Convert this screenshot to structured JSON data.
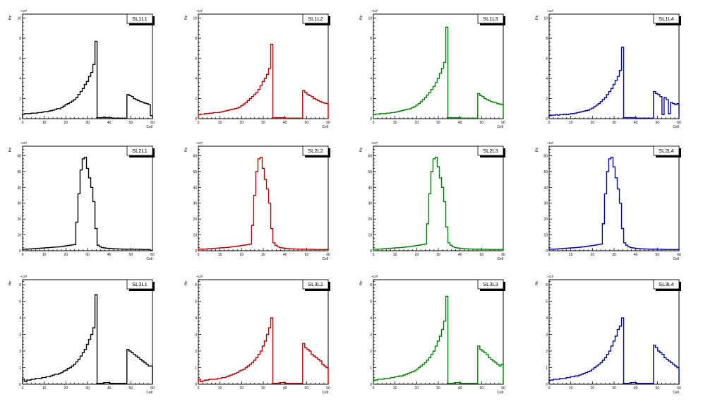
{
  "page": {
    "background": "#ffffff"
  },
  "chart_data": [
    {
      "type": "histogram",
      "legend": "SL1L1",
      "color": "#000000",
      "xlabel": "Cell",
      "ylabel": "Hz",
      "xlim": [
        0,
        60
      ],
      "ylim": [
        0,
        10.4
      ],
      "yexp": "×10²",
      "xticks": [
        0,
        10,
        20,
        30,
        40,
        50,
        60
      ],
      "yticks": [
        0,
        2,
        4,
        6,
        8,
        10
      ],
      "values": [
        0.45,
        0.5,
        0.5,
        0.5,
        0.55,
        0.55,
        0.55,
        0.6,
        0.6,
        0.65,
        0.7,
        0.7,
        0.75,
        0.8,
        0.85,
        0.9,
        1.0,
        1.0,
        1.1,
        1.25,
        1.4,
        1.5,
        1.6,
        1.75,
        1.9,
        2.1,
        2.4,
        2.7,
        3.0,
        3.4,
        3.7,
        4.2,
        4.6,
        5.4,
        7.7,
        0.1,
        0.1,
        0.1,
        0.15,
        0.1,
        0.1,
        0.1,
        0.05,
        0.05,
        0.05,
        0.05,
        0.05,
        0.05,
        0.05,
        2.4,
        2.3,
        2.2,
        2.0,
        1.9,
        1.8,
        1.7,
        1.65,
        1.55,
        1.5,
        1.4,
        0.3
      ]
    },
    {
      "type": "histogram",
      "legend": "SL1L2",
      "color": "#b00000",
      "xlabel": "Cell",
      "ylabel": "Hz",
      "xlim": [
        0,
        60
      ],
      "ylim": [
        0,
        10.4
      ],
      "yexp": "×10²",
      "xticks": [
        0,
        10,
        20,
        30,
        40,
        50,
        60
      ],
      "yticks": [
        0,
        2,
        4,
        6,
        8,
        10
      ],
      "values": [
        0.4,
        0.45,
        0.45,
        0.5,
        0.5,
        0.55,
        0.55,
        0.6,
        0.6,
        0.6,
        0.65,
        0.7,
        0.75,
        0.8,
        0.85,
        0.9,
        0.95,
        1.0,
        1.05,
        1.15,
        1.3,
        1.45,
        1.6,
        1.8,
        2.0,
        2.2,
        2.4,
        2.6,
        2.9,
        3.3,
        3.7,
        4.0,
        4.4,
        5.0,
        7.4,
        0.1,
        0.1,
        0.1,
        0.1,
        0.1,
        0.1,
        0.05,
        0.05,
        0.05,
        0.05,
        0.05,
        0.05,
        0.05,
        0.05,
        2.8,
        2.6,
        2.4,
        2.3,
        2.2,
        2.0,
        1.9,
        1.8,
        1.7,
        1.6,
        1.55,
        1.5
      ]
    },
    {
      "type": "histogram",
      "legend": "SL1L3",
      "color": "#008000",
      "xlabel": "Cell",
      "ylabel": "Hz",
      "xlim": [
        0,
        60
      ],
      "ylim": [
        0,
        10.4
      ],
      "yexp": "×10²",
      "xticks": [
        0,
        10,
        20,
        30,
        40,
        50,
        60
      ],
      "yticks": [
        0,
        2,
        4,
        6,
        8,
        10
      ],
      "values": [
        0.4,
        0.45,
        0.45,
        0.5,
        0.5,
        0.5,
        0.55,
        0.55,
        0.6,
        0.6,
        0.65,
        0.7,
        0.75,
        0.8,
        0.85,
        0.9,
        0.95,
        1.0,
        1.1,
        1.2,
        1.35,
        1.5,
        1.7,
        1.9,
        2.1,
        2.35,
        2.6,
        2.9,
        3.2,
        3.6,
        4.0,
        4.5,
        5.0,
        5.6,
        9.1,
        0.1,
        0.1,
        0.1,
        0.1,
        0.1,
        0.1,
        0.05,
        0.05,
        0.05,
        0.05,
        0.05,
        0.05,
        0.05,
        0.05,
        2.5,
        2.3,
        2.2,
        2.0,
        1.9,
        1.8,
        1.7,
        1.65,
        1.6,
        1.5,
        1.45,
        1.4
      ]
    },
    {
      "type": "histogram",
      "legend": "SL1L4",
      "color": "#0000a0",
      "xlabel": "Cell",
      "ylabel": "Hz",
      "xlim": [
        0,
        60
      ],
      "ylim": [
        0,
        10.4
      ],
      "yexp": "×10²",
      "xticks": [
        0,
        10,
        20,
        30,
        40,
        50,
        60
      ],
      "yticks": [
        0,
        2,
        4,
        6,
        8,
        10
      ],
      "values": [
        0.3,
        0.35,
        0.35,
        0.4,
        0.35,
        0.4,
        0.4,
        0.45,
        0.4,
        0.45,
        0.5,
        0.5,
        0.55,
        0.6,
        0.65,
        0.7,
        0.75,
        0.8,
        0.85,
        0.95,
        1.05,
        1.2,
        1.35,
        1.5,
        1.7,
        1.9,
        2.1,
        2.4,
        2.7,
        3.0,
        3.4,
        3.8,
        4.2,
        4.8,
        7.1,
        0.1,
        0.1,
        0.1,
        0.1,
        0.1,
        0.1,
        0.05,
        0.05,
        0.05,
        0.05,
        0.05,
        0.05,
        0.05,
        0.05,
        2.7,
        2.5,
        2.4,
        2.2,
        0.4,
        2.1,
        1.9,
        0.5,
        1.6,
        1.5,
        1.4,
        1.5
      ]
    },
    {
      "type": "histogram",
      "legend": "SL2L1",
      "color": "#000000",
      "xlabel": "Cell",
      "ylabel": "Hz",
      "xlim": [
        0,
        60
      ],
      "ylim": [
        0,
        66
      ],
      "yexp": "×10³",
      "xticks": [
        0,
        10,
        20,
        30,
        40,
        50,
        60
      ],
      "yticks": [
        0,
        10,
        20,
        30,
        40,
        50,
        60
      ],
      "values": [
        1,
        1,
        1,
        1.2,
        1.2,
        1.3,
        1.4,
        1.5,
        1.6,
        1.7,
        1.8,
        1.9,
        2,
        2.1,
        2.2,
        2.3,
        2.4,
        2.5,
        2.7,
        2.9,
        3.1,
        3.3,
        3.5,
        3.7,
        3.9,
        18,
        36,
        51,
        58,
        59,
        52,
        46,
        40,
        31,
        14,
        3.5,
        2.5,
        2,
        1.8,
        1.6,
        1.5,
        1.4,
        1.3,
        1.2,
        1.2,
        1.1,
        1.1,
        1,
        1,
        1,
        1,
        1,
        0.9,
        0.9,
        0.9,
        0.9,
        0.8,
        0.8,
        0.8,
        0.8,
        0.2
      ]
    },
    {
      "type": "histogram",
      "legend": "SL2L2",
      "color": "#b00000",
      "xlabel": "Cell",
      "ylabel": "Hz",
      "xlim": [
        0,
        60
      ],
      "ylim": [
        0,
        66
      ],
      "yexp": "×10³",
      "xticks": [
        0,
        10,
        20,
        30,
        40,
        50,
        60
      ],
      "yticks": [
        0,
        10,
        20,
        30,
        40,
        50,
        60
      ],
      "values": [
        1,
        1,
        1,
        1.1,
        1.2,
        1.3,
        1.4,
        1.5,
        1.6,
        1.7,
        1.8,
        1.9,
        2,
        2.1,
        2.2,
        2.4,
        2.5,
        2.7,
        2.9,
        3.1,
        3.3,
        3.5,
        3.7,
        4,
        4.2,
        16,
        35,
        50,
        58,
        59,
        52,
        45,
        39,
        30,
        14,
        5,
        3.5,
        2.5,
        2,
        1.8,
        1.6,
        1.4,
        1.3,
        1.2,
        1.2,
        1.1,
        1.1,
        1,
        1,
        1,
        1,
        0.9,
        0.9,
        0.9,
        0.8,
        0.8,
        0.8,
        0.8,
        0.8,
        0.8,
        0.8
      ]
    },
    {
      "type": "histogram",
      "legend": "SL2L3",
      "color": "#008000",
      "xlabel": "Cell",
      "ylabel": "Hz",
      "xlim": [
        0,
        60
      ],
      "ylim": [
        0,
        66
      ],
      "yexp": "×10³",
      "xticks": [
        0,
        10,
        20,
        30,
        40,
        50,
        60
      ],
      "yticks": [
        0,
        10,
        20,
        30,
        40,
        50,
        60
      ],
      "values": [
        1,
        1,
        1,
        1.1,
        1.2,
        1.3,
        1.4,
        1.5,
        1.6,
        1.7,
        1.8,
        1.9,
        2,
        2.1,
        2.2,
        2.4,
        2.5,
        2.7,
        2.9,
        3.1,
        3.3,
        3.5,
        3.7,
        4,
        4.2,
        17,
        36,
        50,
        58,
        59,
        53,
        46,
        40,
        31,
        15,
        5,
        3.5,
        2.5,
        2,
        1.8,
        1.6,
        1.4,
        1.3,
        1.2,
        1.2,
        1.1,
        1.1,
        1,
        1,
        1,
        1,
        0.9,
        0.9,
        0.9,
        0.8,
        0.8,
        0.8,
        0.8,
        0.8,
        0.8,
        0.8
      ]
    },
    {
      "type": "histogram",
      "legend": "SL2L4",
      "color": "#0000a0",
      "xlabel": "Cell",
      "ylabel": "Hz",
      "xlim": [
        0,
        60
      ],
      "ylim": [
        0,
        66
      ],
      "yexp": "×10³",
      "xticks": [
        0,
        10,
        20,
        30,
        40,
        50,
        60
      ],
      "yticks": [
        0,
        10,
        20,
        30,
        40,
        50,
        60
      ],
      "values": [
        1,
        1,
        1,
        1.1,
        1.2,
        1.3,
        1.4,
        1.5,
        1.6,
        1.7,
        1.8,
        1.9,
        2,
        2.1,
        2.2,
        2.4,
        2.5,
        2.7,
        2.9,
        3.1,
        3.3,
        3.5,
        3.7,
        4,
        4.2,
        17,
        36,
        50,
        58,
        59,
        53,
        46,
        39,
        30,
        14,
        5,
        3.5,
        2.5,
        2,
        1.8,
        1.6,
        1.4,
        1.3,
        1.2,
        1.2,
        1.1,
        1.1,
        1,
        1,
        1,
        1,
        0.9,
        0.9,
        0.9,
        0.8,
        0.8,
        0.8,
        0.8,
        0.8,
        0.8,
        0.8
      ]
    },
    {
      "type": "histogram",
      "legend": "SL3L1",
      "color": "#000000",
      "xlabel": "Cell",
      "ylabel": "Hz",
      "xlim": [
        0,
        60
      ],
      "ylim": [
        0,
        6.3
      ],
      "yexp": "×10²",
      "xticks": [
        0,
        10,
        20,
        30,
        40,
        50,
        60
      ],
      "yticks": [
        0,
        1,
        2,
        3,
        4,
        5,
        6
      ],
      "values": [
        0.3,
        0.15,
        0.25,
        0.25,
        0.3,
        0.3,
        0.35,
        0.35,
        0.35,
        0.4,
        0.4,
        0.45,
        0.45,
        0.5,
        0.55,
        0.6,
        0.6,
        0.65,
        0.7,
        0.8,
        0.85,
        0.95,
        1.0,
        1.1,
        1.2,
        1.35,
        1.5,
        1.7,
        1.9,
        2.1,
        2.4,
        2.7,
        3.0,
        3.4,
        5.4,
        0.05,
        0.05,
        0.05,
        0.1,
        0.1,
        0.1,
        0.05,
        0.05,
        0.05,
        0.05,
        0.05,
        0.05,
        0.05,
        0.05,
        2.1,
        2.0,
        1.9,
        1.8,
        1.7,
        1.6,
        1.5,
        1.4,
        1.3,
        1.2,
        1.1,
        1.1
      ]
    },
    {
      "type": "histogram",
      "legend": "SL3L2",
      "color": "#b00000",
      "xlabel": "Cell",
      "ylabel": "Hz",
      "xlim": [
        0,
        60
      ],
      "ylim": [
        0,
        6.3
      ],
      "yexp": "×10²",
      "xticks": [
        0,
        10,
        20,
        30,
        40,
        50,
        60
      ],
      "yticks": [
        0,
        1,
        2,
        3,
        4,
        5,
        6
      ],
      "values": [
        0.3,
        0.15,
        0.2,
        0.25,
        0.25,
        0.3,
        0.3,
        0.3,
        0.3,
        0.35,
        0.35,
        0.4,
        0.4,
        0.45,
        0.5,
        0.55,
        0.6,
        0.65,
        0.7,
        0.8,
        0.85,
        0.9,
        1.0,
        1.1,
        1.2,
        1.3,
        1.45,
        1.6,
        1.8,
        2.0,
        2.3,
        2.6,
        3.0,
        3.4,
        4.0,
        0.05,
        0.05,
        0.05,
        0.1,
        0.1,
        0.1,
        0.05,
        0.05,
        0.05,
        0.05,
        0.05,
        0.05,
        0.05,
        0.05,
        2.45,
        2.2,
        2.1,
        2.0,
        1.8,
        1.7,
        1.6,
        1.5,
        1.4,
        1.2,
        1.1,
        1.0
      ]
    },
    {
      "type": "histogram",
      "legend": "SL3L3",
      "color": "#008000",
      "xlabel": "Cell",
      "ylabel": "Hz",
      "xlim": [
        0,
        60
      ],
      "ylim": [
        0,
        6.3
      ],
      "yexp": "×10²",
      "xticks": [
        0,
        10,
        20,
        30,
        40,
        50,
        60
      ],
      "yticks": [
        0,
        1,
        2,
        3,
        4,
        5,
        6
      ],
      "values": [
        0.25,
        0.25,
        0.3,
        0.3,
        0.3,
        0.35,
        0.35,
        0.35,
        0.4,
        0.4,
        0.45,
        0.45,
        0.5,
        0.5,
        0.55,
        0.6,
        0.65,
        0.7,
        0.75,
        0.8,
        0.9,
        1.0,
        1.1,
        1.2,
        1.3,
        1.45,
        1.6,
        1.8,
        2.0,
        2.3,
        2.6,
        2.9,
        3.3,
        3.8,
        5.3,
        0.05,
        0.05,
        0.05,
        0.1,
        0.1,
        0.1,
        0.05,
        0.05,
        0.05,
        0.05,
        0.05,
        0.05,
        0.05,
        0.05,
        2.3,
        2.1,
        2.0,
        1.9,
        1.8,
        1.6,
        1.5,
        1.4,
        1.3,
        1.2,
        1.1,
        1.2
      ]
    },
    {
      "type": "histogram",
      "legend": "SL3L4",
      "color": "#0000a0",
      "xlabel": "Cell",
      "ylabel": "Hz",
      "xlim": [
        0,
        60
      ],
      "ylim": [
        0,
        6.3
      ],
      "yexp": "×10²",
      "xticks": [
        0,
        10,
        20,
        30,
        40,
        50,
        60
      ],
      "yticks": [
        0,
        1,
        2,
        3,
        4,
        5,
        6
      ],
      "values": [
        0.25,
        0.25,
        0.3,
        0.3,
        0.3,
        0.35,
        0.35,
        0.35,
        0.4,
        0.4,
        0.45,
        0.45,
        0.5,
        0.5,
        0.55,
        0.6,
        0.65,
        0.7,
        0.75,
        0.8,
        0.9,
        1.0,
        1.1,
        1.2,
        1.3,
        1.45,
        1.6,
        1.8,
        2.0,
        2.3,
        2.6,
        2.9,
        3.3,
        3.5,
        4.0,
        0.05,
        0.05,
        0.05,
        0.1,
        0.1,
        0.1,
        0.05,
        0.05,
        0.05,
        0.05,
        0.05,
        0.05,
        0.05,
        0.05,
        2.35,
        2.2,
        2.0,
        1.9,
        1.8,
        1.6,
        1.5,
        1.4,
        1.3,
        1.2,
        1.1,
        1.0
      ]
    }
  ]
}
